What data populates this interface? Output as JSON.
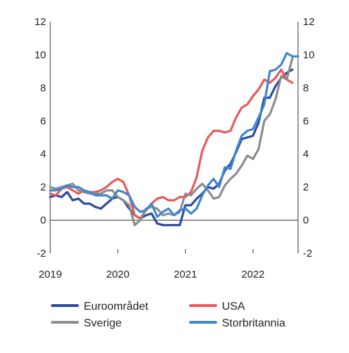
{
  "chart_data": {
    "type": "line",
    "title": "",
    "xlabel": "",
    "ylabel": "",
    "ylim": [
      -2,
      12
    ],
    "yticks": [
      -2,
      0,
      2,
      4,
      6,
      8,
      10,
      12
    ],
    "xlim": [
      2019.0,
      2022.667
    ],
    "xticks": [
      {
        "value": 2019,
        "label": "2019"
      },
      {
        "value": 2020,
        "label": "2020"
      },
      {
        "value": 2021,
        "label": "2021"
      },
      {
        "value": 2022,
        "label": "2022"
      }
    ],
    "grid": false,
    "legend_position": "bottom",
    "series": [
      {
        "name": "Euroområdet",
        "color": "#2b4a9b",
        "x": [
          2019.0,
          2019.083,
          2019.167,
          2019.25,
          2019.333,
          2019.417,
          2019.5,
          2019.583,
          2019.667,
          2019.75,
          2019.833,
          2019.917,
          2020.0,
          2020.083,
          2020.167,
          2020.25,
          2020.333,
          2020.417,
          2020.5,
          2020.583,
          2020.667,
          2020.75,
          2020.833,
          2020.917,
          2021.0,
          2021.083,
          2021.167,
          2021.25,
          2021.333,
          2021.417,
          2021.5,
          2021.583,
          2021.667,
          2021.75,
          2021.833,
          2021.917,
          2022.0,
          2022.083,
          2022.167,
          2022.25,
          2022.333,
          2022.417,
          2022.5,
          2022.583
        ],
        "y": [
          1.4,
          1.5,
          1.4,
          1.7,
          1.2,
          1.3,
          1.0,
          1.0,
          0.8,
          0.7,
          1.0,
          1.3,
          1.4,
          1.2,
          0.7,
          0.3,
          0.1,
          0.3,
          0.4,
          -0.2,
          -0.3,
          -0.3,
          -0.3,
          -0.3,
          0.9,
          0.9,
          1.3,
          1.6,
          2.0,
          1.9,
          2.2,
          3.0,
          3.4,
          4.1,
          4.9,
          5.0,
          5.1,
          5.9,
          7.4,
          7.4,
          8.1,
          8.6,
          8.9,
          9.1
        ]
      },
      {
        "name": "USA",
        "color": "#e85a5a",
        "x": [
          2019.0,
          2019.083,
          2019.167,
          2019.25,
          2019.333,
          2019.417,
          2019.5,
          2019.583,
          2019.667,
          2019.75,
          2019.833,
          2019.917,
          2020.0,
          2020.083,
          2020.167,
          2020.25,
          2020.333,
          2020.417,
          2020.5,
          2020.583,
          2020.667,
          2020.75,
          2020.833,
          2020.917,
          2021.0,
          2021.083,
          2021.167,
          2021.25,
          2021.333,
          2021.417,
          2021.5,
          2021.583,
          2021.667,
          2021.75,
          2021.833,
          2021.917,
          2022.0,
          2022.083,
          2022.167,
          2022.25,
          2022.333,
          2022.417,
          2022.5,
          2022.583
        ],
        "y": [
          1.6,
          1.5,
          1.9,
          2.0,
          1.8,
          1.6,
          1.8,
          1.7,
          1.7,
          1.8,
          2.0,
          2.3,
          2.5,
          2.3,
          1.5,
          0.3,
          0.1,
          0.6,
          1.0,
          1.3,
          1.4,
          1.2,
          1.2,
          1.4,
          1.4,
          1.7,
          2.6,
          4.2,
          5.0,
          5.4,
          5.4,
          5.3,
          5.4,
          6.2,
          6.8,
          7.0,
          7.5,
          7.9,
          8.5,
          8.3,
          8.6,
          9.1,
          8.5,
          8.3
        ]
      },
      {
        "name": "Sverige",
        "color": "#8c8c8c",
        "x": [
          2019.0,
          2019.083,
          2019.167,
          2019.25,
          2019.333,
          2019.417,
          2019.5,
          2019.583,
          2019.667,
          2019.75,
          2019.833,
          2019.917,
          2020.0,
          2020.083,
          2020.167,
          2020.25,
          2020.333,
          2020.417,
          2020.5,
          2020.583,
          2020.667,
          2020.75,
          2020.833,
          2020.917,
          2021.0,
          2021.083,
          2021.167,
          2021.25,
          2021.333,
          2021.417,
          2021.5,
          2021.583,
          2021.667,
          2021.75,
          2021.833,
          2021.917,
          2022.0,
          2022.083,
          2022.167,
          2022.25,
          2022.333,
          2022.417,
          2022.5,
          2022.583
        ],
        "y": [
          2.0,
          1.9,
          2.0,
          2.1,
          2.2,
          1.8,
          1.7,
          1.6,
          1.6,
          1.6,
          1.8,
          1.8,
          1.4,
          1.2,
          0.9,
          -0.3,
          0.0,
          0.7,
          0.8,
          0.7,
          0.3,
          0.4,
          0.3,
          0.5,
          1.6,
          1.5,
          1.9,
          2.2,
          1.8,
          1.3,
          1.4,
          2.1,
          2.5,
          2.8,
          3.3,
          3.9,
          3.7,
          4.3,
          6.0,
          6.4,
          7.3,
          8.7,
          8.5,
          9.8
        ]
      },
      {
        "name": "Storbritannia",
        "color": "#3f86cf",
        "x": [
          2019.0,
          2019.083,
          2019.167,
          2019.25,
          2019.333,
          2019.417,
          2019.5,
          2019.583,
          2019.667,
          2019.75,
          2019.833,
          2019.917,
          2020.0,
          2020.083,
          2020.167,
          2020.25,
          2020.333,
          2020.417,
          2020.5,
          2020.583,
          2020.667,
          2020.75,
          2020.833,
          2020.917,
          2021.0,
          2021.083,
          2021.167,
          2021.25,
          2021.333,
          2021.417,
          2021.5,
          2021.583,
          2021.667,
          2021.75,
          2021.833,
          2021.917,
          2022.0,
          2022.083,
          2022.167,
          2022.25,
          2022.333,
          2022.417,
          2022.5,
          2022.583,
          2022.667
        ],
        "y": [
          1.8,
          1.8,
          1.9,
          2.1,
          2.0,
          2.0,
          1.8,
          1.7,
          1.5,
          1.5,
          1.5,
          1.3,
          1.8,
          1.7,
          1.5,
          0.8,
          0.5,
          0.6,
          1.0,
          0.2,
          0.5,
          0.7,
          0.3,
          0.6,
          0.7,
          0.4,
          0.7,
          1.5,
          2.1,
          2.5,
          2.0,
          3.2,
          3.1,
          4.2,
          5.1,
          5.4,
          5.5,
          6.2,
          7.0,
          9.0,
          9.1,
          9.4,
          10.1,
          9.9,
          9.9
        ]
      }
    ]
  }
}
